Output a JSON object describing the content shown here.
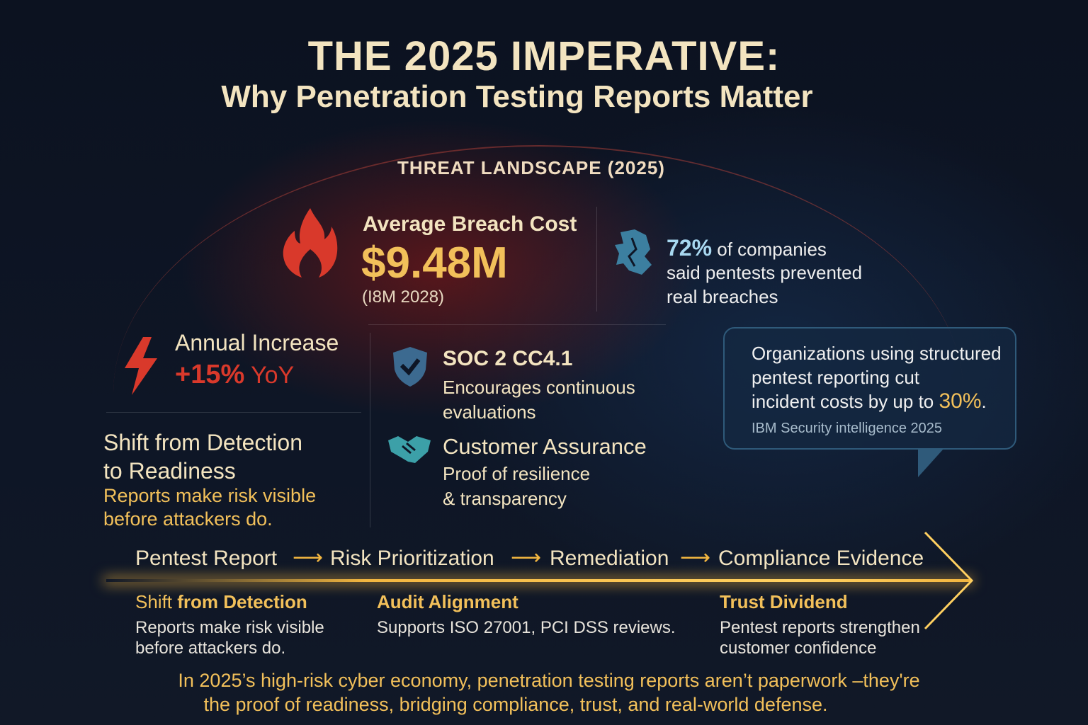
{
  "title": "THE 2025 IMPERATIVE:",
  "subtitle": "Why Penetration Testing Reports Matter",
  "section_label": "THREAT LANDSCAPE (2025)",
  "breach": {
    "label": "Average Breach Cost",
    "value": "$9.48M",
    "source": "(I8M 2028)",
    "icon": "flame-icon"
  },
  "prevented": {
    "value": "72%",
    "line1": " of companies",
    "line2": "said pentests prevented",
    "line3": "real breaches",
    "icon": "broken-shield-icon"
  },
  "increase": {
    "label": "Annual Increase",
    "value": "+15%",
    "unit": " YoY",
    "icon": "lightning-icon"
  },
  "shift": {
    "title1": "Shift from Detection",
    "title2": "to Readiness",
    "body1": "Reports make risk visible",
    "body2": "before attackers do."
  },
  "soc": {
    "title": "SOC 2 CC4.1",
    "line1": "Encourages continuous",
    "line2": "evaluations",
    "icon": "shield-check-icon"
  },
  "assurance": {
    "title": "Customer Assurance",
    "line1": "Proof of resilience",
    "line2": "& transparency",
    "icon": "handshake-icon"
  },
  "callout": {
    "line1": "Organizations using structured",
    "line2": "pentest reporting cut",
    "line3": "incident costs by up to ",
    "highlight": "30%",
    "end": ".",
    "source": "IBM Security intelligence 2025"
  },
  "flow": {
    "steps": [
      "Pentest Report",
      "Risk Prioritization",
      "Remediation",
      "Compliance Evidence"
    ],
    "arrow": "⟶"
  },
  "benefits": [
    {
      "title_a": "Shift",
      "title_b": " from  Detection",
      "line1": "Reports make risk visible",
      "line2": "before attackers do."
    },
    {
      "title": "Audit Alignment",
      "line1": "Supports ISO 27001, PCI DSS reviews."
    },
    {
      "title": "Trust Dividend",
      "line1": "Pentest reports strengthen",
      "line2": "customer confidence"
    }
  ],
  "footer": {
    "line1": "In 2025’s high-risk cyber economy, penetration testing reports aren’t paperwork –they're",
    "line2": "the proof of readiness, bridging compliance, trust, and real-world defense."
  },
  "colors": {
    "gold": "#f2c05a",
    "red": "#d9392b",
    "cream": "#f3e4c0",
    "teal": "#3c8fb0",
    "background": "#0c1220"
  }
}
